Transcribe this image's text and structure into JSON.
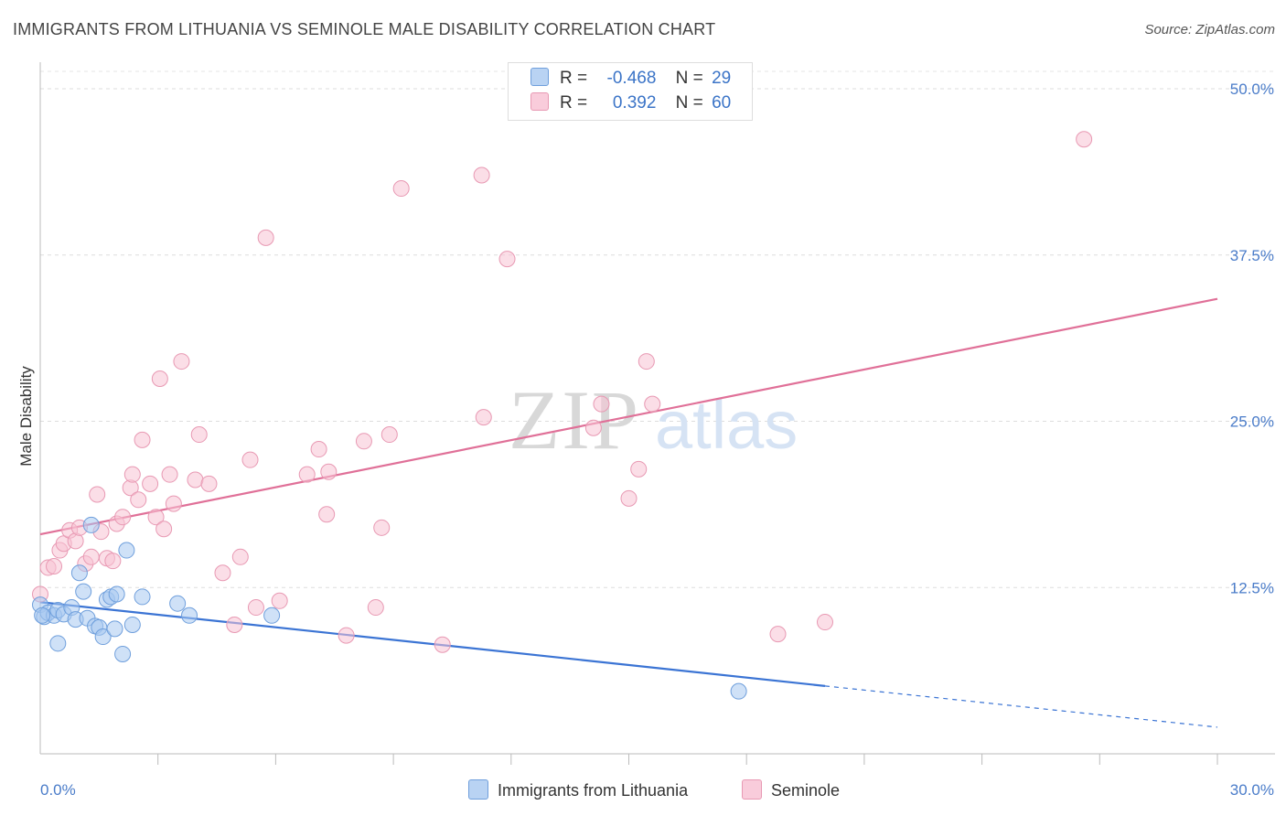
{
  "title": "IMMIGRANTS FROM LITHUANIA VS SEMINOLE MALE DISABILITY CORRELATION CHART",
  "source": "Source: ZipAtlas.com",
  "watermark": {
    "zip": "ZIP",
    "atlas": "atlas"
  },
  "legend": {
    "rows": [
      {
        "r_label": "R =",
        "r_value": "-0.468",
        "n_label": "N =",
        "n_value": "29",
        "color": "#a8c8f0",
        "border": "#6f9fdc"
      },
      {
        "r_label": "R =",
        "r_value": "0.392",
        "n_label": "N =",
        "n_value": "60",
        "color": "#f7c3d4",
        "border": "#e899b3"
      }
    ]
  },
  "bottom_legend": {
    "items": [
      {
        "label": "Immigrants from Lithuania",
        "color": "#b9d3f3",
        "border": "#6f9fdc"
      },
      {
        "label": "Seminole",
        "color": "#f9ccdb",
        "border": "#e899b3"
      }
    ]
  },
  "chart_data": {
    "type": "scatter",
    "title": "IMMIGRANTS FROM LITHUANIA VS SEMINOLE MALE DISABILITY CORRELATION CHART",
    "xlabel": "",
    "ylabel": "Male Disability",
    "xlim": [
      0,
      30
    ],
    "ylim": [
      0,
      50
    ],
    "x_tick_labels": [
      "0.0%",
      "30.0%"
    ],
    "y_tick_labels": [
      "12.5%",
      "25.0%",
      "37.5%",
      "50.0%"
    ],
    "y_tick_values": [
      12.5,
      25.0,
      37.5,
      50.0
    ],
    "grid": "dashed horizontal",
    "series": [
      {
        "name": "Immigrants from Lithuania",
        "color": "#6f9fdc",
        "fill": "#a8c8f0",
        "points": [
          [
            0.0,
            11.2
          ],
          [
            0.1,
            10.3
          ],
          [
            0.2,
            10.6
          ],
          [
            0.35,
            10.4
          ],
          [
            0.45,
            10.8
          ],
          [
            0.6,
            10.5
          ],
          [
            0.8,
            11.0
          ],
          [
            0.9,
            10.1
          ],
          [
            1.0,
            13.6
          ],
          [
            1.1,
            12.2
          ],
          [
            1.2,
            10.2
          ],
          [
            1.3,
            17.2
          ],
          [
            1.4,
            9.6
          ],
          [
            1.5,
            9.5
          ],
          [
            1.6,
            8.8
          ],
          [
            1.7,
            11.6
          ],
          [
            1.8,
            11.8
          ],
          [
            1.9,
            9.4
          ],
          [
            1.95,
            12.0
          ],
          [
            2.1,
            7.5
          ],
          [
            2.2,
            15.3
          ],
          [
            2.35,
            9.7
          ],
          [
            2.6,
            11.8
          ],
          [
            3.5,
            11.3
          ],
          [
            3.8,
            10.4
          ],
          [
            5.9,
            10.4
          ],
          [
            0.45,
            8.3
          ],
          [
            17.8,
            4.7
          ],
          [
            0.05,
            10.4
          ]
        ],
        "trend": {
          "x0": 0.0,
          "y0": 11.4,
          "x1": 20.0,
          "y1": 5.1,
          "dash_to_x": 30.0,
          "dash_to_y": 2.0
        }
      },
      {
        "name": "Seminole",
        "color": "#e899b3",
        "fill": "#f7c3d4",
        "points": [
          [
            0.0,
            12.0
          ],
          [
            0.2,
            14.0
          ],
          [
            0.35,
            14.1
          ],
          [
            0.5,
            15.3
          ],
          [
            0.6,
            15.8
          ],
          [
            0.75,
            16.8
          ],
          [
            0.9,
            16.0
          ],
          [
            1.0,
            17.0
          ],
          [
            1.15,
            14.3
          ],
          [
            1.3,
            14.8
          ],
          [
            1.45,
            19.5
          ],
          [
            1.55,
            16.7
          ],
          [
            1.7,
            14.7
          ],
          [
            1.85,
            14.5
          ],
          [
            1.95,
            17.3
          ],
          [
            2.1,
            17.8
          ],
          [
            2.3,
            20.0
          ],
          [
            2.35,
            21.0
          ],
          [
            2.5,
            19.1
          ],
          [
            2.6,
            23.6
          ],
          [
            2.8,
            20.3
          ],
          [
            2.95,
            17.8
          ],
          [
            3.05,
            28.2
          ],
          [
            3.15,
            16.9
          ],
          [
            3.3,
            21.0
          ],
          [
            3.4,
            18.8
          ],
          [
            3.6,
            29.5
          ],
          [
            3.95,
            20.6
          ],
          [
            4.05,
            24.0
          ],
          [
            4.3,
            20.3
          ],
          [
            4.65,
            13.6
          ],
          [
            4.95,
            9.7
          ],
          [
            5.1,
            14.8
          ],
          [
            5.35,
            22.1
          ],
          [
            5.5,
            11.0
          ],
          [
            5.75,
            38.8
          ],
          [
            6.1,
            11.5
          ],
          [
            6.8,
            21.0
          ],
          [
            7.1,
            22.9
          ],
          [
            7.3,
            18.0
          ],
          [
            7.35,
            21.2
          ],
          [
            7.8,
            8.9
          ],
          [
            8.25,
            23.5
          ],
          [
            8.55,
            11.0
          ],
          [
            8.7,
            17.0
          ],
          [
            8.9,
            24.0
          ],
          [
            9.2,
            42.5
          ],
          [
            10.25,
            8.2
          ],
          [
            11.25,
            43.5
          ],
          [
            11.3,
            25.3
          ],
          [
            11.9,
            37.2
          ],
          [
            14.1,
            24.5
          ],
          [
            14.3,
            26.3
          ],
          [
            15.0,
            19.2
          ],
          [
            15.25,
            21.4
          ],
          [
            15.45,
            29.5
          ],
          [
            15.6,
            26.3
          ],
          [
            18.8,
            9.0
          ],
          [
            20.0,
            9.9
          ],
          [
            26.6,
            46.2
          ]
        ],
        "trend": {
          "x0": 0.0,
          "y0": 16.5,
          "x1": 30.0,
          "y1": 34.2
        }
      }
    ]
  }
}
